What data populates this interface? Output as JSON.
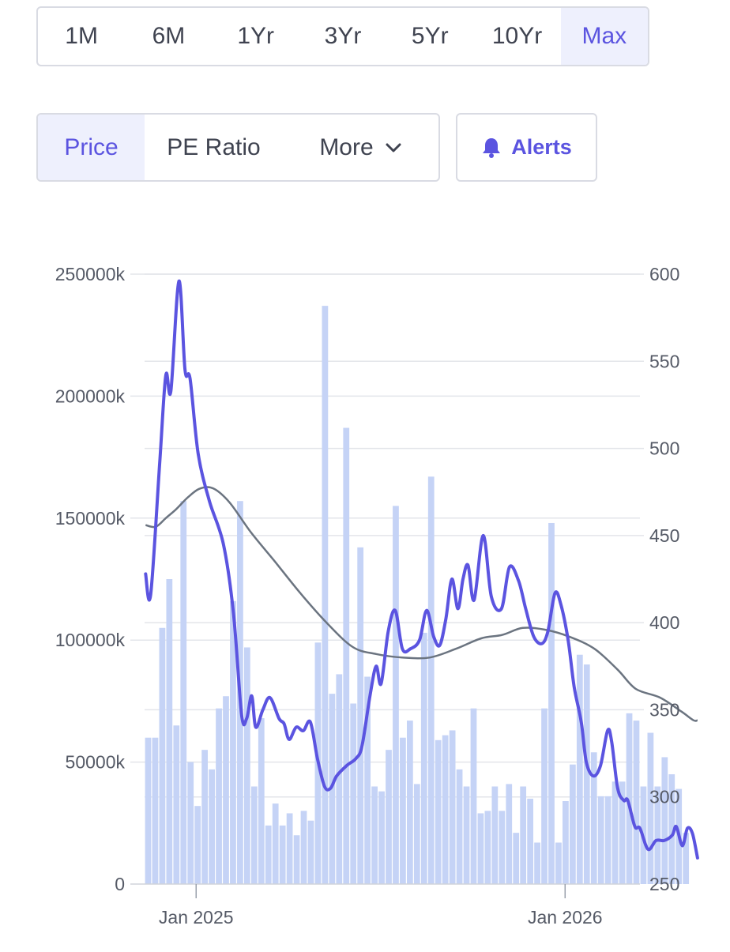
{
  "range_tabs": [
    "1M",
    "6M",
    "1Yr",
    "3Yr",
    "5Yr",
    "10Yr",
    "Max"
  ],
  "active_range": "Max",
  "metric_tabs": {
    "price": "Price",
    "pe_ratio": "PE Ratio",
    "more": "More"
  },
  "active_metric": "Price",
  "alerts_label": "Alerts",
  "icons": {
    "more": "chevron-down-icon",
    "alerts": "bell-icon"
  },
  "colors": {
    "accent": "#5b54e0",
    "price_line": "#5b54e0",
    "ma_line": "#6b7480",
    "volume_bars": "#c5d3f6",
    "grid": "#e3e5ea"
  },
  "chart_data": {
    "type": "bar+line",
    "x_range": [
      "2024-11-11",
      "2026-03-09"
    ],
    "x_ticks": [
      {
        "date": "2025-01-01",
        "label": "Jan 2025"
      },
      {
        "date": "2026-01-01",
        "label": "Jan 2026"
      }
    ],
    "left_axis": {
      "ylim": [
        0,
        250000
      ],
      "ticks": [
        0,
        50000,
        100000,
        150000,
        200000,
        250000
      ],
      "tick_labels": [
        "0",
        "50000k",
        "100000k",
        "150000k",
        "200000k",
        "250000k"
      ]
    },
    "right_axis": {
      "ylim": [
        250,
        600
      ],
      "ticks": [
        250,
        300,
        350,
        400,
        450,
        500,
        550,
        600
      ],
      "tick_labels": [
        "250",
        "300",
        "350",
        "400",
        "450",
        "500",
        "550",
        "600"
      ]
    },
    "grid": true,
    "volume_series": {
      "axis": "left",
      "start_week": "2024-11-11",
      "interval_days": 7,
      "values": [
        60000,
        60000,
        105000,
        125000,
        65000,
        157000,
        50000,
        32000,
        55000,
        47000,
        72000,
        77000,
        116000,
        157000,
        97000,
        40000,
        68000,
        24000,
        33000,
        24000,
        29000,
        20000,
        30000,
        26000,
        99000,
        237000,
        78000,
        86000,
        187000,
        74000,
        138000,
        85000,
        40000,
        38000,
        55000,
        155000,
        60000,
        67000,
        41000,
        103000,
        167000,
        59000,
        61000,
        63000,
        47000,
        40000,
        72000,
        29000,
        30000,
        40000,
        30000,
        41000,
        21000,
        40000,
        35000,
        17000,
        72000,
        148000,
        17000,
        34000,
        49000,
        94000,
        90000,
        54000,
        36000,
        36000,
        42000,
        42000,
        70000,
        67000,
        40000,
        62000,
        40000,
        52000,
        45000,
        39000,
        21000
      ]
    },
    "price_series": {
      "axis": "right",
      "points": [
        [
          "2024-11-12",
          428
        ],
        [
          "2024-11-17",
          416
        ],
        [
          "2024-11-26",
          492
        ],
        [
          "2024-12-02",
          542
        ],
        [
          "2024-12-07",
          533
        ],
        [
          "2024-12-15",
          596
        ],
        [
          "2024-12-21",
          545
        ],
        [
          "2024-12-26",
          540
        ],
        [
          "2025-01-03",
          497
        ],
        [
          "2025-01-14",
          470
        ],
        [
          "2025-01-28",
          445
        ],
        [
          "2025-02-07",
          405
        ],
        [
          "2025-02-15",
          347
        ],
        [
          "2025-02-20",
          345
        ],
        [
          "2025-02-25",
          358
        ],
        [
          "2025-03-01",
          340
        ],
        [
          "2025-03-08",
          350
        ],
        [
          "2025-03-15",
          357
        ],
        [
          "2025-03-24",
          345
        ],
        [
          "2025-03-29",
          342
        ],
        [
          "2025-04-03",
          333
        ],
        [
          "2025-04-10",
          340
        ],
        [
          "2025-04-17",
          338
        ],
        [
          "2025-04-24",
          343
        ],
        [
          "2025-05-01",
          322
        ],
        [
          "2025-05-08",
          306
        ],
        [
          "2025-05-14",
          305
        ],
        [
          "2025-05-20",
          312
        ],
        [
          "2025-05-30",
          318
        ],
        [
          "2025-06-08",
          322
        ],
        [
          "2025-06-14",
          329
        ],
        [
          "2025-06-22",
          358
        ],
        [
          "2025-06-28",
          375
        ],
        [
          "2025-07-03",
          365
        ],
        [
          "2025-07-10",
          395
        ],
        [
          "2025-07-17",
          407
        ],
        [
          "2025-07-24",
          385
        ],
        [
          "2025-08-01",
          385
        ],
        [
          "2025-08-10",
          390
        ],
        [
          "2025-08-17",
          407
        ],
        [
          "2025-08-24",
          392
        ],
        [
          "2025-08-30",
          387
        ],
        [
          "2025-09-05",
          402
        ],
        [
          "2025-09-11",
          425
        ],
        [
          "2025-09-17",
          408
        ],
        [
          "2025-09-22",
          425
        ],
        [
          "2025-09-27",
          433
        ],
        [
          "2025-10-03",
          413
        ],
        [
          "2025-10-12",
          450
        ],
        [
          "2025-10-20",
          415
        ],
        [
          "2025-10-30",
          408
        ],
        [
          "2025-11-07",
          432
        ],
        [
          "2025-11-16",
          424
        ],
        [
          "2025-11-23",
          408
        ],
        [
          "2025-12-01",
          392
        ],
        [
          "2025-12-09",
          388
        ],
        [
          "2025-12-15",
          395
        ],
        [
          "2025-12-22",
          417
        ],
        [
          "2025-12-28",
          410
        ],
        [
          "2026-01-04",
          390
        ],
        [
          "2026-01-10",
          363
        ],
        [
          "2026-01-17",
          343
        ],
        [
          "2026-01-22",
          320
        ],
        [
          "2026-01-29",
          312
        ],
        [
          "2026-02-05",
          318
        ],
        [
          "2026-02-12",
          338
        ],
        [
          "2026-02-16",
          332
        ],
        [
          "2026-02-22",
          305
        ],
        [
          "2026-02-28",
          298
        ],
        [
          "2026-03-04",
          298
        ],
        [
          "2026-03-11",
          283
        ],
        [
          "2026-03-16",
          282
        ],
        [
          "2026-03-24",
          270
        ],
        [
          "2026-04-01",
          275
        ],
        [
          "2026-04-09",
          275
        ],
        [
          "2026-04-17",
          278
        ],
        [
          "2026-04-21",
          283
        ],
        [
          "2026-04-27",
          272
        ],
        [
          "2026-05-02",
          282
        ],
        [
          "2026-05-07",
          279
        ],
        [
          "2026-05-12",
          265
        ]
      ]
    },
    "moving_average_series": {
      "axis": "right",
      "points": [
        [
          "2024-11-12",
          456
        ],
        [
          "2024-11-22",
          455
        ],
        [
          "2024-12-02",
          460
        ],
        [
          "2024-12-12",
          465
        ],
        [
          "2024-12-24",
          472
        ],
        [
          "2025-01-05",
          477
        ],
        [
          "2025-01-18",
          477
        ],
        [
          "2025-02-03",
          469
        ],
        [
          "2025-02-24",
          452
        ],
        [
          "2025-03-20",
          435
        ],
        [
          "2025-04-14",
          417
        ],
        [
          "2025-05-10",
          400
        ],
        [
          "2025-06-05",
          386
        ],
        [
          "2025-06-28",
          382
        ],
        [
          "2025-07-24",
          380
        ],
        [
          "2025-08-20",
          380
        ],
        [
          "2025-09-15",
          385
        ],
        [
          "2025-10-10",
          391
        ],
        [
          "2025-10-31",
          393
        ],
        [
          "2025-11-20",
          397
        ],
        [
          "2025-12-12",
          396
        ],
        [
          "2026-01-05",
          392
        ],
        [
          "2026-01-30",
          385
        ],
        [
          "2026-02-22",
          373
        ],
        [
          "2026-03-12",
          362
        ],
        [
          "2026-04-05",
          357
        ],
        [
          "2026-04-26",
          349
        ],
        [
          "2026-05-08",
          344
        ],
        [
          "2026-05-12",
          344
        ]
      ]
    }
  }
}
